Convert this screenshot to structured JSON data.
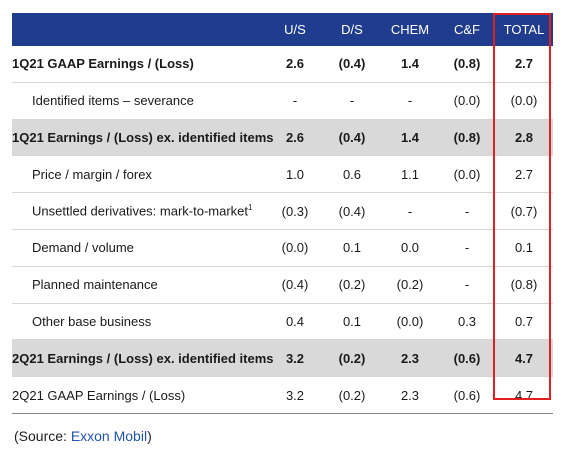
{
  "header": {
    "columns": [
      "U/S",
      "D/S",
      "CHEM",
      "C&F",
      "TOTAL"
    ]
  },
  "rows": [
    {
      "label": "1Q21 GAAP Earnings / (Loss)",
      "values": [
        "2.6",
        "(0.4)",
        "1.4",
        "(0.8)",
        "2.7"
      ],
      "bold": true,
      "shaded": false,
      "indent": false
    },
    {
      "label": "Identified items – severance",
      "values": [
        "-",
        "-",
        "-",
        "(0.0)",
        "(0.0)"
      ],
      "bold": false,
      "shaded": false,
      "indent": true
    },
    {
      "label": "1Q21 Earnings / (Loss) ex. identified items",
      "values": [
        "2.6",
        "(0.4)",
        "1.4",
        "(0.8)",
        "2.8"
      ],
      "bold": true,
      "shaded": true,
      "indent": false
    },
    {
      "label": "Price / margin / forex",
      "values": [
        "1.0",
        "0.6",
        "1.1",
        "(0.0)",
        "2.7"
      ],
      "bold": false,
      "shaded": false,
      "indent": true
    },
    {
      "label": "Unsettled derivatives: mark-to-market",
      "footnote": "1",
      "values": [
        "(0.3)",
        "(0.4)",
        "-",
        "-",
        "(0.7)"
      ],
      "bold": false,
      "shaded": false,
      "indent": true
    },
    {
      "label": "Demand / volume",
      "values": [
        "(0.0)",
        "0.1",
        "0.0",
        "-",
        "0.1"
      ],
      "bold": false,
      "shaded": false,
      "indent": true
    },
    {
      "label": "Planned maintenance",
      "values": [
        "(0.4)",
        "(0.2)",
        "(0.2)",
        "-",
        "(0.8)"
      ],
      "bold": false,
      "shaded": false,
      "indent": true
    },
    {
      "label": "Other base business",
      "values": [
        "0.4",
        "0.1",
        "(0.0)",
        "0.3",
        "0.7"
      ],
      "bold": false,
      "shaded": false,
      "indent": true
    },
    {
      "label": "2Q21 Earnings / (Loss) ex. identified items",
      "values": [
        "3.2",
        "(0.2)",
        "2.3",
        "(0.6)",
        "4.7"
      ],
      "bold": true,
      "shaded": true,
      "indent": false
    },
    {
      "label": "2Q21 GAAP Earnings / (Loss)",
      "values": [
        "3.2",
        "(0.2)",
        "2.3",
        "(0.6)",
        "4.7"
      ],
      "bold": false,
      "shaded": false,
      "indent": false
    }
  ],
  "source": {
    "prefix": "(Source: ",
    "link_text": "Exxon Mobil",
    "suffix": ")"
  },
  "colors": {
    "header_bg": "#1f3c8f",
    "highlight_border": "#e02020",
    "shaded_row": "#d9d9d9",
    "link": "#2255aa"
  }
}
